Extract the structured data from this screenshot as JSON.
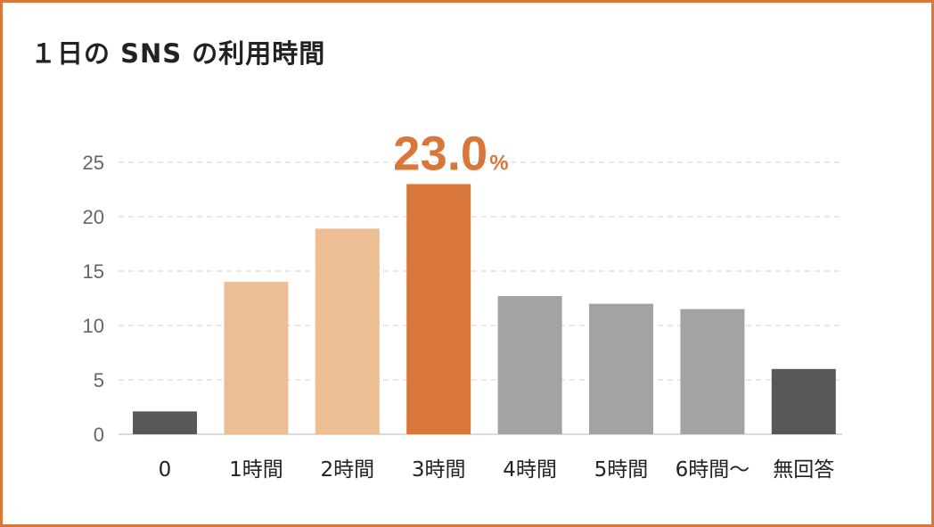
{
  "title": "１日の SNS の利用時間",
  "chart_data": {
    "type": "bar",
    "title": "１日の SNS の利用時間",
    "xlabel": "",
    "ylabel": "",
    "ylim": [
      0,
      25
    ],
    "yticks": [
      0,
      5,
      10,
      15,
      20,
      25
    ],
    "grid": true,
    "categories": [
      "0",
      "1時間",
      "2時間",
      "3時間",
      "4時間",
      "5時間",
      "6時間〜",
      "無回答"
    ],
    "values": [
      2.1,
      14.0,
      18.9,
      23.0,
      12.7,
      12.0,
      11.5,
      6.0
    ],
    "colors": [
      "#595757",
      "#edbd93",
      "#edbd93",
      "#d9773a",
      "#a2a3a2",
      "#a2a3a2",
      "#a2a3a2",
      "#595757"
    ],
    "annotation": {
      "category": "3時間",
      "value": "23.0",
      "unit": "%",
      "color": "#d9773a"
    }
  }
}
